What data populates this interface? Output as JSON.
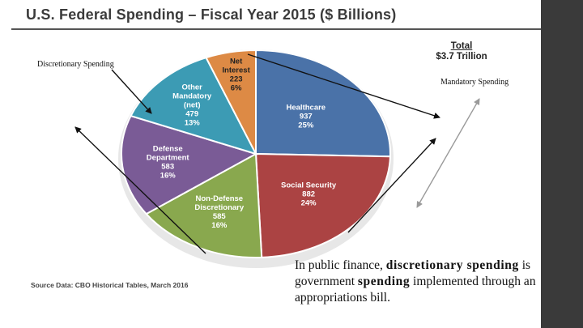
{
  "chart_data": {
    "type": "pie",
    "title": "U.S. Federal Spending – Fiscal Year 2015 ($ Billions)",
    "total_label": "Total",
    "total_value": "$3.7 Trillion",
    "slices": [
      {
        "name": "Healthcare",
        "lines": [
          "Healthcare"
        ],
        "value": 937,
        "value_label": "937",
        "pct_label": "25%",
        "color": "#4a72a8"
      },
      {
        "name": "Social Security",
        "lines": [
          "Social Security"
        ],
        "value": 882,
        "value_label": "882",
        "pct_label": "24%",
        "color": "#ab4343"
      },
      {
        "name": "Non-Defense Discretionary",
        "lines": [
          "Non-Defense",
          "Discretionary"
        ],
        "value": 585,
        "value_label": "585",
        "pct_label": "16%",
        "color": "#89a84e"
      },
      {
        "name": "Defense Department",
        "lines": [
          "Defense",
          "Department"
        ],
        "value": 583,
        "value_label": "583",
        "pct_label": "16%",
        "color": "#7a5b96"
      },
      {
        "name": "Other Mandatory (net)",
        "lines": [
          "Other",
          "Mandatory",
          "(net)"
        ],
        "value": 479,
        "value_label": "479",
        "pct_label": "13%",
        "color": "#3c9bb4"
      },
      {
        "name": "Net Interest",
        "lines": [
          "Net",
          "Interest"
        ],
        "value": 223,
        "value_label": "223",
        "pct_label": "6%",
        "color": "#dd8a45"
      }
    ],
    "source": "Source Data: CBO Historical Tables, March 2016"
  },
  "annotations": {
    "discretionary": "Discretionary Spending",
    "mandatory": "Mandatory Spending"
  },
  "definition": {
    "part1": "In public finance, ",
    "bold1": "discretionary spending",
    "part2": " is government ",
    "bold2": "spending",
    "part3": " implemented through an appropriations bill."
  },
  "colors": {
    "sidebar": "#3a3a3a",
    "pie_edge": "#bfbfbf",
    "arrow": "#111111",
    "gray_arrow": "#9a9a9a"
  }
}
